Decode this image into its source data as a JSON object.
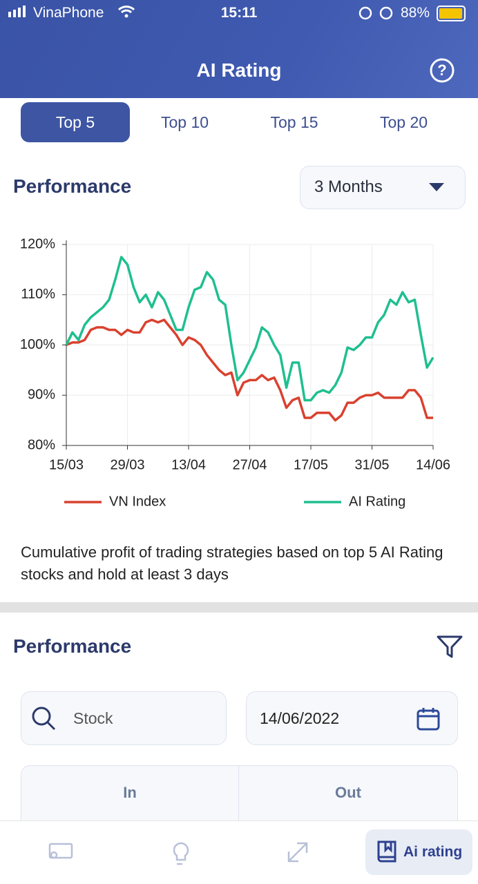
{
  "status": {
    "carrier": "VinaPhone",
    "time": "15:11",
    "battery": "88%"
  },
  "header": {
    "title": "AI Rating"
  },
  "tabs": {
    "items": [
      "Top 5",
      "Top 10",
      "Top 15",
      "Top 20"
    ],
    "active": 0
  },
  "section1": {
    "title": "Performance",
    "range": "3 Months"
  },
  "chart_data": {
    "type": "line",
    "categories": [
      "15/03",
      null,
      null,
      null,
      null,
      null,
      null,
      null,
      null,
      null,
      "29/03",
      null,
      null,
      null,
      null,
      null,
      null,
      null,
      null,
      null,
      "13/04",
      null,
      null,
      null,
      null,
      null,
      null,
      null,
      null,
      null,
      "27/04",
      null,
      null,
      null,
      null,
      null,
      null,
      null,
      null,
      null,
      "17/05",
      null,
      null,
      null,
      null,
      null,
      null,
      null,
      null,
      null,
      "31/05",
      null,
      null,
      null,
      null,
      null,
      null,
      null,
      null,
      null,
      "14/06"
    ],
    "series": [
      {
        "name": "VN Index",
        "color": "#d9412f",
        "values": [
          100,
          100.5,
          100.5,
          101,
          103,
          103.5,
          103.5,
          103,
          103,
          102,
          103,
          102.5,
          102.5,
          104.5,
          105,
          104.5,
          105,
          103.5,
          102,
          100,
          101.5,
          101,
          100,
          98,
          96.5,
          95,
          94,
          94.5,
          90,
          92.5,
          93,
          93,
          94,
          93,
          93.5,
          91,
          87.5,
          89,
          89.5,
          85.5,
          85.5,
          86.5,
          86.5,
          86.5,
          85,
          86,
          88.5,
          88.5,
          89.5,
          90,
          90,
          90.5,
          89.5,
          89.5,
          89.5,
          89.5,
          91,
          91,
          89.5,
          85.5,
          85.5
        ]
      },
      {
        "name": "AI Rating",
        "color": "#1fbf8f",
        "values": [
          100,
          102.5,
          101,
          104,
          105.5,
          106.5,
          107.5,
          109,
          113,
          117.5,
          116,
          111.5,
          108.5,
          110,
          107.5,
          110.5,
          109,
          106,
          103,
          103,
          107.5,
          111,
          111.5,
          114.5,
          113,
          109,
          108,
          100,
          93,
          94.5,
          97,
          99.5,
          103.5,
          102.5,
          100,
          98,
          91.5,
          96.5,
          96.5,
          89,
          89,
          90.5,
          91,
          90.5,
          92,
          94.5,
          99.5,
          99,
          100,
          101.5,
          101.5,
          104.5,
          106,
          109,
          108,
          110.5,
          108.5,
          109,
          102,
          95.5,
          97.5
        ]
      }
    ],
    "ylim": [
      80,
      120
    ],
    "yticks": [
      {
        "value": 80,
        "label": "80%"
      },
      {
        "value": 90,
        "label": "90%"
      },
      {
        "value": 100,
        "label": "100%"
      },
      {
        "value": 110,
        "label": "110%"
      },
      {
        "value": 120,
        "label": "120%"
      }
    ],
    "grid": true
  },
  "description": "Cumulative profit of trading strategies based on top 5 AI Rating stocks and hold at least 3 days",
  "section2": {
    "title": "Performance",
    "search_placeholder": "Stock",
    "date": "14/06/2022"
  },
  "table": {
    "headers": [
      "In",
      "Out"
    ]
  },
  "nav": {
    "active_label": "Ai rating"
  }
}
